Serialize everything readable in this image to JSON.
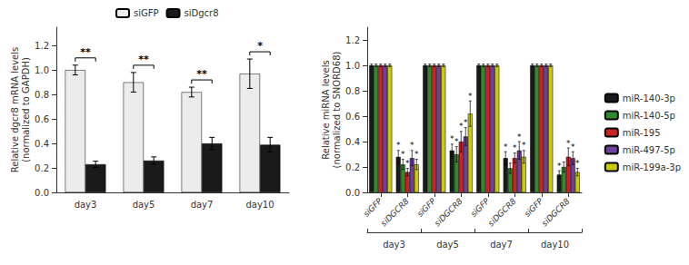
{
  "chart_data": [
    {
      "type": "bar",
      "ylabel": "Relative dgcr8 mRNA levels\n(normalized to GAPDH)",
      "categories": [
        "day3",
        "day5",
        "day7",
        "day10"
      ],
      "series": [
        {
          "name": "siGFP",
          "color": "#ececec",
          "values": [
            1.0,
            0.9,
            0.82,
            0.97
          ],
          "errors": [
            0.04,
            0.08,
            0.04,
            0.12
          ]
        },
        {
          "name": "siDgcr8",
          "color": "#1a1a1a",
          "values": [
            0.23,
            0.26,
            0.4,
            0.39
          ],
          "errors": [
            0.025,
            0.03,
            0.05,
            0.06
          ]
        }
      ],
      "significance": [
        "**",
        "**",
        "**",
        "*"
      ],
      "ylim": [
        0,
        1.35
      ],
      "yticks": [
        {
          "value": 0,
          "label": "0.0"
        },
        0.2,
        0.4,
        0.6,
        0.8,
        {
          "value": 1.0,
          "label": "1.0"
        },
        1.2
      ],
      "grid": false,
      "legend": "top"
    },
    {
      "type": "bar",
      "ylabel": "Relative miRNA levels\n(normalized to SNORD68)",
      "categories": [
        "siGFP",
        "siDGCR8",
        "siGFP",
        "siDGCR8",
        "siGFP",
        "siDGCR8",
        "siGFP",
        "siDGCR8"
      ],
      "category_groups": [
        "day3",
        "day5",
        "day7",
        "day10"
      ],
      "series": [
        {
          "name": "miR-140-3p",
          "color": "#1a1a1a",
          "values": [
            1.0,
            0.28,
            1.0,
            0.33,
            1.0,
            0.27,
            1.0,
            0.14
          ],
          "errors": [
            0.01,
            0.05,
            0.01,
            0.05,
            0.01,
            0.05,
            0.01,
            0.03
          ],
          "significance": [
            null,
            "*",
            null,
            "*",
            null,
            "*",
            null,
            "*"
          ]
        },
        {
          "name": "miR-140-5p",
          "color": "#2d8a2d",
          "values": [
            1.0,
            0.22,
            1.0,
            0.3,
            1.0,
            0.19,
            1.0,
            0.2
          ],
          "errors": [
            0.01,
            0.04,
            0.01,
            0.06,
            0.01,
            0.04,
            0.01,
            0.04
          ],
          "significance": [
            null,
            "*",
            null,
            "*",
            null,
            null,
            null,
            null
          ]
        },
        {
          "name": "miR-195",
          "color": "#cc2222",
          "values": [
            1.0,
            0.16,
            1.0,
            0.4,
            1.0,
            0.27,
            1.0,
            0.28
          ],
          "errors": [
            0.01,
            0.03,
            0.01,
            0.08,
            0.01,
            0.04,
            0.01,
            0.07
          ],
          "significance": [
            null,
            "*",
            null,
            "*",
            null,
            "*",
            null,
            "*"
          ]
        },
        {
          "name": "miR-497-5p",
          "color": "#7040a0",
          "values": [
            1.0,
            0.27,
            1.0,
            0.44,
            1.0,
            0.33,
            1.0,
            0.27
          ],
          "errors": [
            0.01,
            0.06,
            0.01,
            0.07,
            0.01,
            0.07,
            0.01,
            0.05
          ],
          "significance": [
            null,
            "*",
            null,
            "*",
            null,
            "*",
            null,
            "*"
          ]
        },
        {
          "name": "miR-199a-3p",
          "color": "#cccc00",
          "values": [
            1.0,
            0.22,
            1.0,
            0.62,
            1.0,
            0.28,
            1.0,
            0.16
          ],
          "errors": [
            0.01,
            0.04,
            0.01,
            0.1,
            0.01,
            0.05,
            0.01,
            0.03
          ],
          "significance": [
            null,
            "*",
            null,
            "*",
            null,
            "*",
            null,
            "*"
          ]
        }
      ],
      "ylim": [
        0,
        1.3
      ],
      "yticks": [
        {
          "value": 0,
          "label": "0.0"
        },
        0.2,
        0.4,
        0.6,
        0.8,
        {
          "value": 1.0,
          "label": "1.0"
        },
        1.2
      ],
      "grid": false,
      "legend": "right"
    }
  ]
}
